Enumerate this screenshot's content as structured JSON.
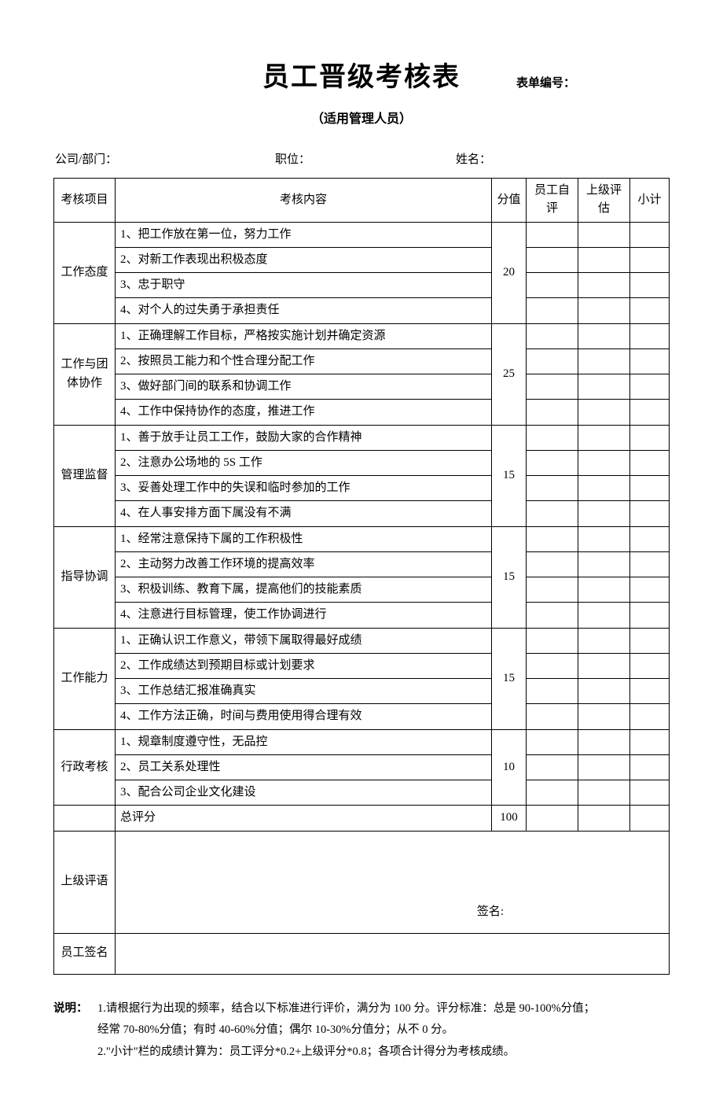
{
  "title": "员工晋级考核表",
  "form_no_label": "表单编号：",
  "subtitle": "（适用管理人员）",
  "meta": {
    "company_label": "公司/部门：",
    "position_label": "职位：",
    "name_label": "姓名："
  },
  "headers": {
    "project": "考核项目",
    "content": "考核内容",
    "score": "分值",
    "self": "员工自评",
    "supervisor": "上级评估",
    "subtotal": "小计"
  },
  "sections": [
    {
      "name": "工作态度",
      "score": "20",
      "items": [
        "1、把工作放在第一位，努力工作",
        "2、对新工作表现出积极态度",
        "3、忠于职守",
        "4、对个人的过失勇于承担责任"
      ]
    },
    {
      "name": "工作与团体协作",
      "score": "25",
      "items": [
        "1、正确理解工作目标，严格按实施计划并确定资源",
        "2、按照员工能力和个性合理分配工作",
        "3、做好部门间的联系和协调工作",
        "4、工作中保持协作的态度，推进工作"
      ]
    },
    {
      "name": "管理监督",
      "score": "15",
      "items": [
        "1、善于放手让员工工作，鼓励大家的合作精神",
        "2、注意办公场地的 5S 工作",
        "3、妥善处理工作中的失误和临时参加的工作",
        "4、在人事安排方面下属没有不满"
      ]
    },
    {
      "name": "指导协调",
      "score": "15",
      "items": [
        "1、经常注意保持下属的工作积极性",
        "2、主动努力改善工作环境的提高效率",
        "3、积极训练、教育下属，提高他们的技能素质",
        "4、注意进行目标管理，使工作协调进行"
      ]
    },
    {
      "name": "工作能力",
      "score": "15",
      "items": [
        "1、正确认识工作意义，带领下属取得最好成绩",
        "2、工作成绩达到预期目标或计划要求",
        "3、工作总结汇报准确真实",
        "4、工作方法正确，时间与费用使用得合理有效"
      ]
    },
    {
      "name": "行政考核",
      "score": "10",
      "items": [
        "1、规章制度遵守性，无品控",
        "2、员工关系处理性",
        "3、配合公司企业文化建设"
      ]
    }
  ],
  "total_row": {
    "label": "总评分",
    "score": "100"
  },
  "comment": {
    "label": "上级评语",
    "sign": "签名:"
  },
  "emp_sign": {
    "label": "员工签名"
  },
  "notes": {
    "label": "说明：",
    "line1": "1.请根据行为出现的频率，结合以下标准进行评价，满分为 100 分。评分标准：总是 90-100%分值；",
    "line1b": "经常 70-80%分值；有时 40-60%分值；偶尔 10-30%分值分；从不 0 分。",
    "line2": "2.\"小计\"栏的成绩计算为：员工评分*0.2+上级评分*0.8；各项合计得分为考核成绩。"
  }
}
